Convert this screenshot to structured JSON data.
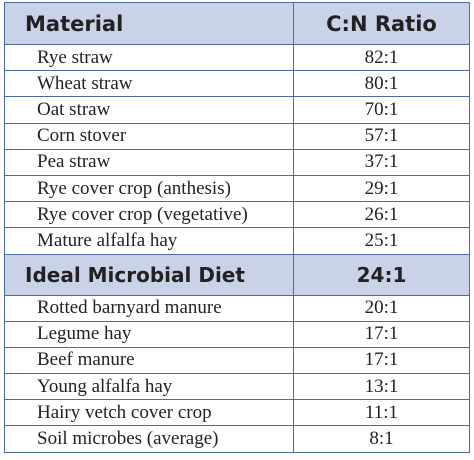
{
  "table": {
    "header": [
      "Material",
      "C:N Ratio"
    ],
    "rows": [
      [
        "Rye straw",
        "82:1"
      ],
      [
        "Wheat straw",
        "80:1"
      ],
      [
        "Oat straw",
        "70:1"
      ],
      [
        "Corn stover",
        "57:1"
      ],
      [
        "Pea straw",
        "37:1"
      ],
      [
        "Rye cover crop (anthesis)",
        "29:1"
      ],
      [
        "Rye cover crop (vegetative)",
        "26:1"
      ],
      [
        "Mature alfalfa hay",
        "25:1"
      ],
      [
        "Ideal Microbial Diet",
        "24:1"
      ],
      [
        "Rotted barnyard manure",
        "20:1"
      ],
      [
        "Legume hay",
        "17:1"
      ],
      [
        "Beef manure",
        "17:1"
      ],
      [
        "Young alfalfa hay",
        "13:1"
      ],
      [
        "Hairy vetch cover crop",
        "11:1"
      ],
      [
        "Soil microbes (average)",
        "8:1"
      ]
    ]
  }
}
